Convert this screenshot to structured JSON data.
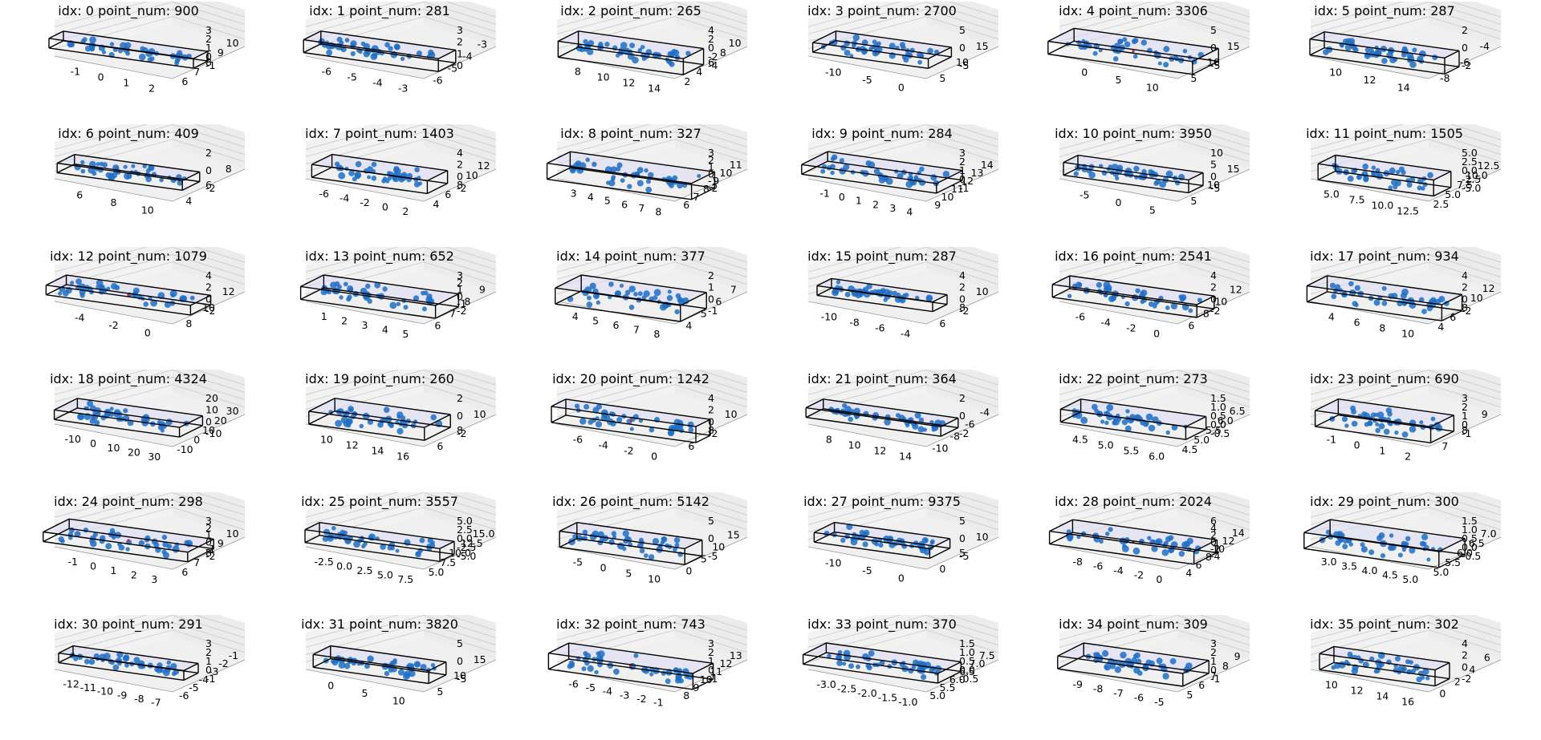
{
  "colors": {
    "points": "#1f6fc5",
    "box_edge": "#000000",
    "box_fill": "#dcdcf5",
    "outlier": "#d62728",
    "pane": "#f0f0f0",
    "grid": "#c8c8c8"
  },
  "chart_data": [
    {
      "type": "scatter",
      "title": "idx: 0 point_num: 900",
      "x_ticks": [
        "-1",
        "0",
        "1",
        "2"
      ],
      "y_ticks": [
        "6",
        "7",
        "8",
        "9",
        "10"
      ],
      "z_ticks": [
        "3",
        "2",
        "1",
        "0",
        "-1"
      ]
    },
    {
      "type": "scatter",
      "title": "idx: 1 point_num: 281",
      "x_ticks": [
        "-6",
        "-5",
        "-4",
        "-3"
      ],
      "y_ticks": [
        "-6",
        "-5",
        "-4",
        "-3"
      ],
      "z_ticks": [
        "3",
        "2",
        "1",
        "0"
      ]
    },
    {
      "type": "scatter",
      "title": "idx: 2 point_num: 265",
      "x_ticks": [
        "8",
        "10",
        "12",
        "14"
      ],
      "y_ticks": [
        "2",
        "4",
        "6",
        "8",
        "10"
      ],
      "z_ticks": [
        "4",
        "2",
        "0",
        "-2",
        "-4"
      ]
    },
    {
      "type": "scatter",
      "title": "idx: 3 point_num: 2700",
      "x_ticks": [
        "-10",
        "-5",
        "0"
      ],
      "y_ticks": [
        "5",
        "10",
        "15"
      ],
      "z_ticks": [
        "5",
        "0",
        "-5"
      ]
    },
    {
      "type": "scatter",
      "title": "idx: 4 point_num: 3306",
      "x_ticks": [
        "0",
        "5",
        "10"
      ],
      "y_ticks": [
        "5",
        "10",
        "15"
      ],
      "z_ticks": [
        "5",
        "0",
        "-5"
      ]
    },
    {
      "type": "scatter",
      "title": "idx: 5 point_num: 287",
      "x_ticks": [
        "10",
        "12",
        "14"
      ],
      "y_ticks": [
        "-8",
        "-6",
        "-4"
      ],
      "z_ticks": [
        "2",
        "0",
        "-2"
      ]
    },
    {
      "type": "scatter",
      "title": "idx: 6 point_num: 409",
      "x_ticks": [
        "6",
        "8",
        "10"
      ],
      "y_ticks": [
        "4",
        "6",
        "8"
      ],
      "z_ticks": [
        "2",
        "0",
        "-2"
      ]
    },
    {
      "type": "scatter",
      "title": "idx: 7 point_num: 1403",
      "x_ticks": [
        "-6",
        "-4",
        "-2",
        "0",
        "2"
      ],
      "y_ticks": [
        "4",
        "6",
        "8",
        "10",
        "12"
      ],
      "z_ticks": [
        "4",
        "2",
        "0",
        "-2"
      ]
    },
    {
      "type": "scatter",
      "title": "idx: 8 point_num: 327",
      "x_ticks": [
        "3",
        "4",
        "5",
        "6",
        "7",
        "8"
      ],
      "y_ticks": [
        "6",
        "7",
        "8",
        "9",
        "10",
        "11"
      ],
      "z_ticks": [
        "3",
        "2",
        "1",
        "0",
        "-1",
        "-2"
      ]
    },
    {
      "type": "scatter",
      "title": "idx: 9 point_num: 284",
      "x_ticks": [
        "-1",
        "0",
        "1",
        "2",
        "3",
        "4"
      ],
      "y_ticks": [
        "9",
        "10",
        "11",
        "12",
        "13",
        "14"
      ],
      "z_ticks": [
        "3",
        "2",
        "1",
        "0",
        "-1"
      ]
    },
    {
      "type": "scatter",
      "title": "idx: 10 point_num: 3950",
      "x_ticks": [
        "-5",
        "0",
        "5"
      ],
      "y_ticks": [
        "5",
        "10",
        "15"
      ],
      "z_ticks": [
        "10",
        "5",
        "0",
        "-5"
      ]
    },
    {
      "type": "scatter",
      "title": "idx: 11 point_num: 1505",
      "x_ticks": [
        "5.0",
        "7.5",
        "10.0",
        "12.5"
      ],
      "y_ticks": [
        "2.5",
        "5.0",
        "7.5",
        "10.0",
        "12.5"
      ],
      "z_ticks": [
        "5.0",
        "2.5",
        "0.0",
        "-2.5",
        "-5.0"
      ]
    },
    {
      "type": "scatter",
      "title": "idx: 12 point_num: 1079",
      "x_ticks": [
        "-4",
        "-2",
        "0"
      ],
      "y_ticks": [
        "8",
        "10",
        "12"
      ],
      "z_ticks": [
        "4",
        "2",
        "0",
        "-2"
      ]
    },
    {
      "type": "scatter",
      "title": "idx: 13 point_num: 652",
      "x_ticks": [
        "1",
        "2",
        "3",
        "4",
        "5"
      ],
      "y_ticks": [
        "6",
        "7",
        "8",
        "9"
      ],
      "z_ticks": [
        "3",
        "2",
        "1",
        "0",
        "-1",
        "-2"
      ]
    },
    {
      "type": "scatter",
      "title": "idx: 14 point_num: 377",
      "x_ticks": [
        "4",
        "5",
        "6",
        "7",
        "8"
      ],
      "y_ticks": [
        "4",
        "5",
        "6",
        "7"
      ],
      "z_ticks": [
        "2",
        "1",
        "0",
        "-1"
      ]
    },
    {
      "type": "scatter",
      "title": "idx: 15 point_num: 287",
      "x_ticks": [
        "-10",
        "-8",
        "-6",
        "-4"
      ],
      "y_ticks": [
        "6",
        "8",
        "10"
      ],
      "z_ticks": [
        "4",
        "2",
        "0",
        "-2"
      ]
    },
    {
      "type": "scatter",
      "title": "idx: 16 point_num: 2541",
      "x_ticks": [
        "-6",
        "-4",
        "-2",
        "0"
      ],
      "y_ticks": [
        "6",
        "8",
        "10",
        "12"
      ],
      "z_ticks": [
        "4",
        "2",
        "0",
        "-2"
      ]
    },
    {
      "type": "scatter",
      "title": "idx: 17 point_num: 934",
      "x_ticks": [
        "4",
        "6",
        "8",
        "10"
      ],
      "y_ticks": [
        "4",
        "6",
        "8",
        "10",
        "12"
      ],
      "z_ticks": [
        "4",
        "2",
        "0",
        "-2"
      ]
    },
    {
      "type": "scatter",
      "title": "idx: 18 point_num: 4324",
      "x_ticks": [
        "-10",
        "0",
        "10",
        "20",
        "30"
      ],
      "y_ticks": [
        "-10",
        "0",
        "10",
        "20",
        "30"
      ],
      "z_ticks": [
        "20",
        "10",
        "0",
        "-10"
      ]
    },
    {
      "type": "scatter",
      "title": "idx: 19 point_num: 260",
      "x_ticks": [
        "10",
        "12",
        "14",
        "16"
      ],
      "y_ticks": [
        "6",
        "8",
        "10"
      ],
      "z_ticks": [
        "2",
        "0",
        "-2"
      ]
    },
    {
      "type": "scatter",
      "title": "idx: 20 point_num: 1242",
      "x_ticks": [
        "-6",
        "-4",
        "-2",
        "0"
      ],
      "y_ticks": [
        "6",
        "8",
        "10"
      ],
      "z_ticks": [
        "4",
        "2",
        "0",
        "-2"
      ]
    },
    {
      "type": "scatter",
      "title": "idx: 21 point_num: 364",
      "x_ticks": [
        "8",
        "10",
        "12",
        "14"
      ],
      "y_ticks": [
        "-10",
        "-8",
        "-6",
        "-4"
      ],
      "z_ticks": [
        "2",
        "0",
        "-2"
      ]
    },
    {
      "type": "scatter",
      "title": "idx: 22 point_num: 273",
      "x_ticks": [
        "4.5",
        "5.0",
        "5.5",
        "6.0"
      ],
      "y_ticks": [
        "4.5",
        "5.0",
        "5.5",
        "6.0",
        "6.5"
      ],
      "z_ticks": [
        "1.5",
        "1.0",
        "0.5",
        "0.0",
        "-0.5"
      ]
    },
    {
      "type": "scatter",
      "title": "idx: 23 point_num: 690",
      "x_ticks": [
        "-1",
        "0",
        "1",
        "2"
      ],
      "y_ticks": [
        "7",
        "8",
        "9"
      ],
      "z_ticks": [
        "3",
        "2",
        "1",
        "0",
        "-1"
      ]
    },
    {
      "type": "scatter",
      "title": "idx: 24 point_num: 298",
      "x_ticks": [
        "-1",
        "0",
        "1",
        "2",
        "3"
      ],
      "y_ticks": [
        "6",
        "7",
        "8",
        "9",
        "10"
      ],
      "z_ticks": [
        "3",
        "2",
        "1",
        "0",
        "-1",
        "-2"
      ]
    },
    {
      "type": "scatter",
      "title": "idx: 25 point_num: 3557",
      "x_ticks": [
        "-2.5",
        "0.0",
        "2.5",
        "5.0",
        "7.5"
      ],
      "y_ticks": [
        "5.0",
        "7.5",
        "10.0",
        "12.5",
        "15.0"
      ],
      "z_ticks": [
        "5.0",
        "2.5",
        "0.0",
        "-2.5",
        "-5.0"
      ]
    },
    {
      "type": "scatter",
      "title": "idx: 26 point_num: 5142",
      "x_ticks": [
        "-5",
        "0",
        "5",
        "10"
      ],
      "y_ticks": [
        "0",
        "5",
        "10",
        "15"
      ],
      "z_ticks": [
        "5",
        "0",
        "-5"
      ]
    },
    {
      "type": "scatter",
      "title": "idx: 27 point_num: 9375",
      "x_ticks": [
        "-10",
        "-5",
        "0"
      ],
      "y_ticks": [
        "0",
        "5",
        "10"
      ],
      "z_ticks": [
        "5",
        "0",
        "-5"
      ]
    },
    {
      "type": "scatter",
      "title": "idx: 28 point_num: 2024",
      "x_ticks": [
        "-8",
        "-6",
        "-4",
        "-2",
        "0"
      ],
      "y_ticks": [
        "4",
        "6",
        "8",
        "10",
        "12",
        "14"
      ],
      "z_ticks": [
        "6",
        "4",
        "2",
        "0",
        "-2",
        "-4"
      ]
    },
    {
      "type": "scatter",
      "title": "idx: 29 point_num: 300",
      "x_ticks": [
        "3.0",
        "3.5",
        "4.0",
        "4.5",
        "5.0"
      ],
      "y_ticks": [
        "5.0",
        "5.5",
        "6.0",
        "6.5",
        "7.0"
      ],
      "z_ticks": [
        "1.5",
        "1.0",
        "0.5",
        "0.0",
        "-0.5"
      ]
    },
    {
      "type": "scatter",
      "title": "idx: 30 point_num: 291",
      "x_ticks": [
        "-12",
        "-11",
        "-10",
        "-9",
        "-8",
        "-7"
      ],
      "y_ticks": [
        "-6",
        "-5",
        "-4",
        "-3",
        "-2",
        "-1"
      ],
      "z_ticks": [
        "3",
        "2",
        "1",
        "0",
        "-1"
      ]
    },
    {
      "type": "scatter",
      "title": "idx: 31 point_num: 3820",
      "x_ticks": [
        "0",
        "5",
        "10"
      ],
      "y_ticks": [
        "5",
        "10",
        "15"
      ],
      "z_ticks": [
        "5",
        "0",
        "-5"
      ]
    },
    {
      "type": "scatter",
      "title": "idx: 32 point_num: 743",
      "x_ticks": [
        "-6",
        "-5",
        "-4",
        "-3",
        "-2",
        "-1"
      ],
      "y_ticks": [
        "8",
        "9",
        "10",
        "11",
        "12",
        "13"
      ],
      "z_ticks": [
        "3",
        "2",
        "1",
        "0",
        "-1"
      ]
    },
    {
      "type": "scatter",
      "title": "idx: 33 point_num: 370",
      "x_ticks": [
        "-3.0",
        "-2.5",
        "-2.0",
        "-1.5",
        "-1.0"
      ],
      "y_ticks": [
        "5.0",
        "5.5",
        "6.0",
        "6.5",
        "7.0",
        "7.5"
      ],
      "z_ticks": [
        "1.5",
        "1.0",
        "0.5",
        "0.0",
        "-0.5"
      ]
    },
    {
      "type": "scatter",
      "title": "idx: 34 point_num: 309",
      "x_ticks": [
        "-9",
        "-8",
        "-7",
        "-6",
        "-5"
      ],
      "y_ticks": [
        "5",
        "6",
        "7",
        "8",
        "9"
      ],
      "z_ticks": [
        "3",
        "2",
        "1",
        "0",
        "-1"
      ]
    },
    {
      "type": "scatter",
      "title": "idx: 35 point_num: 302",
      "x_ticks": [
        "10",
        "12",
        "14",
        "16"
      ],
      "y_ticks": [
        "0",
        "2",
        "4",
        "6"
      ],
      "z_ticks": [
        "4",
        "2",
        "0",
        "-2"
      ]
    }
  ]
}
